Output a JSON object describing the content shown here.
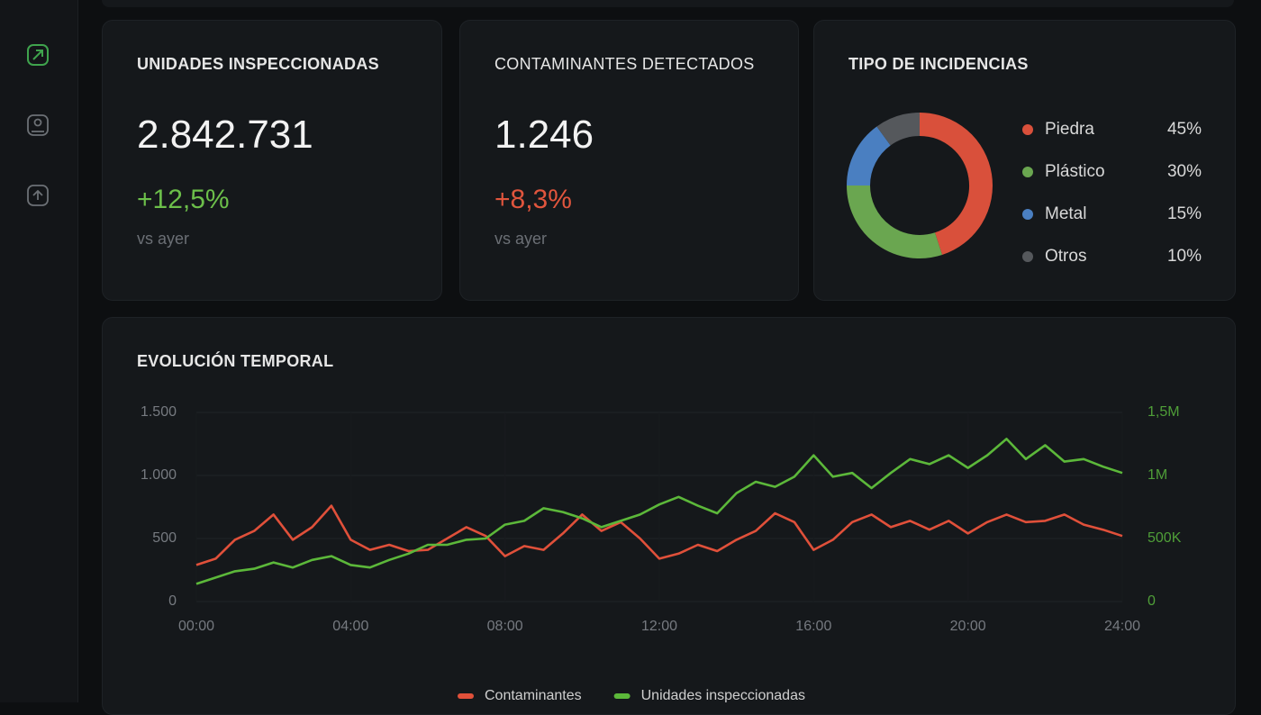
{
  "kpis": [
    {
      "title": "UNIDADES INSPECCIONADAS",
      "value": "2.842.731",
      "change": "+12,5%",
      "change_color": "#6cbf4a",
      "note": "vs ayer"
    },
    {
      "title": "CONTAMINANTES DETECTADOS",
      "value": "1.246",
      "change": "+8,3%",
      "change_color": "#e0553d",
      "note": "vs ayer"
    }
  ],
  "chart_data": [
    {
      "type": "pie",
      "title": "TIPO DE INCIDENCIAS",
      "donut": true,
      "categories": [
        "Piedra",
        "Plástico",
        "Metal",
        "Otros"
      ],
      "values": [
        45,
        30,
        15,
        10
      ],
      "value_labels": [
        "45%",
        "30%",
        "15%",
        "10%"
      ],
      "colors": [
        "#d9503b",
        "#6aa650",
        "#4a7fc1",
        "#55585c"
      ]
    },
    {
      "type": "line",
      "title": "EVOLUCIÓN TEMPORAL",
      "x": [
        0,
        0.5,
        1,
        1.5,
        2,
        2.5,
        3,
        3.5,
        4,
        4.5,
        5,
        5.5,
        6,
        6.5,
        7,
        7.5,
        8,
        8.5,
        9,
        9.5,
        10,
        10.5,
        11,
        11.5,
        12,
        12.5,
        13,
        13.5,
        14,
        14.5,
        15,
        15.5,
        16,
        16.5,
        17,
        17.5,
        18,
        18.5,
        19,
        19.5,
        20,
        20.5,
        21,
        21.5,
        22,
        22.5,
        23,
        23.5,
        24
      ],
      "xlim": [
        0,
        24
      ],
      "xticks": [
        {
          "value": 0,
          "label": "00:00"
        },
        {
          "value": 4,
          "label": "04:00"
        },
        {
          "value": 8,
          "label": "08:00"
        },
        {
          "value": 12,
          "label": "12:00"
        },
        {
          "value": 16,
          "label": "16:00"
        },
        {
          "value": 20,
          "label": "20:00"
        },
        {
          "value": 24,
          "label": "24:00"
        }
      ],
      "ylim": [
        0,
        1500
      ],
      "yticks": [
        0,
        500,
        {
          "value": 1000,
          "label": "1.000"
        },
        {
          "value": 1500,
          "label": "1.500"
        }
      ],
      "y2lim": [
        0,
        1500000
      ],
      "y2ticks": [
        0,
        {
          "value": 500000,
          "label": "500K"
        },
        {
          "value": 1000000,
          "label": "1M"
        },
        {
          "value": 1500000,
          "label": "1,5M"
        }
      ],
      "grid": true,
      "series": [
        {
          "name": "Contaminantes",
          "color": "#e0503a",
          "values": [
            290,
            340,
            490,
            560,
            690,
            490,
            590,
            760,
            490,
            410,
            450,
            400,
            410,
            500,
            590,
            520,
            360,
            440,
            410,
            540,
            690,
            560,
            630,
            500,
            340,
            380,
            450,
            400,
            490,
            560,
            700,
            630,
            410,
            490,
            630,
            690,
            590,
            640,
            570,
            640,
            540,
            630,
            690,
            630,
            640,
            690,
            610,
            570,
            520
          ]
        },
        {
          "name": "Unidades inspeccionadas",
          "color": "#5cb83a",
          "axis": "y2",
          "values": [
            140000,
            190000,
            240000,
            260000,
            310000,
            270000,
            330000,
            360000,
            290000,
            270000,
            330000,
            380000,
            450000,
            450000,
            490000,
            500000,
            610000,
            640000,
            740000,
            710000,
            660000,
            590000,
            640000,
            690000,
            770000,
            830000,
            760000,
            700000,
            860000,
            950000,
            910000,
            990000,
            1160000,
            990000,
            1020000,
            900000,
            1020000,
            1130000,
            1090000,
            1160000,
            1060000,
            1160000,
            1290000,
            1130000,
            1240000,
            1110000,
            1130000,
            1070000,
            1020000
          ]
        }
      ]
    }
  ]
}
